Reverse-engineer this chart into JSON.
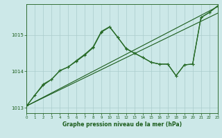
{
  "background_color": "#cce8e8",
  "grid_color": "#aacccc",
  "xlabel": "Graphe pression niveau de la mer (hPa)",
  "xlim": [
    0,
    23
  ],
  "ylim": [
    1012.85,
    1015.85
  ],
  "yticks": [
    1013,
    1014,
    1015
  ],
  "xticks": [
    0,
    1,
    2,
    3,
    4,
    5,
    6,
    7,
    8,
    9,
    10,
    11,
    12,
    13,
    14,
    15,
    16,
    17,
    18,
    19,
    20,
    21,
    22,
    23
  ],
  "line1_x": [
    0,
    23
  ],
  "line1_y": [
    1013.05,
    1015.78
  ],
  "line2_x": [
    0,
    23
  ],
  "line2_y": [
    1013.05,
    1015.6
  ],
  "line3_x": [
    0,
    1,
    2,
    3,
    4,
    5,
    6,
    7,
    8,
    9,
    10,
    11,
    12,
    13,
    14,
    15,
    16,
    17,
    18,
    19,
    20,
    21,
    22,
    23
  ],
  "line3_y": [
    1013.05,
    1013.35,
    1013.62,
    1013.78,
    1014.02,
    1014.12,
    1014.28,
    1014.45,
    1014.65,
    1015.08,
    1015.22,
    1014.93,
    1014.62,
    1014.5,
    1014.38,
    1014.25,
    1014.2,
    1014.2,
    1013.88,
    1014.18,
    1014.2,
    1015.48,
    1015.62,
    1015.8
  ],
  "line4_x": [
    0,
    2,
    3,
    4,
    5,
    6,
    7,
    8,
    9,
    10,
    11,
    12,
    13,
    14,
    15,
    16,
    17,
    18,
    19,
    20,
    21,
    22,
    23
  ],
  "line4_y": [
    1013.05,
    1013.65,
    1013.78,
    1014.02,
    1014.12,
    1014.3,
    1014.47,
    1014.67,
    1015.1,
    1015.23,
    1014.93,
    1014.63,
    1014.5,
    1014.38,
    1014.25,
    1014.2,
    1014.2,
    1013.88,
    1014.18,
    1014.2,
    1015.48,
    1015.62,
    1015.8
  ],
  "dark_green": "#1a5c1a",
  "mid_green": "#2a6e2a"
}
